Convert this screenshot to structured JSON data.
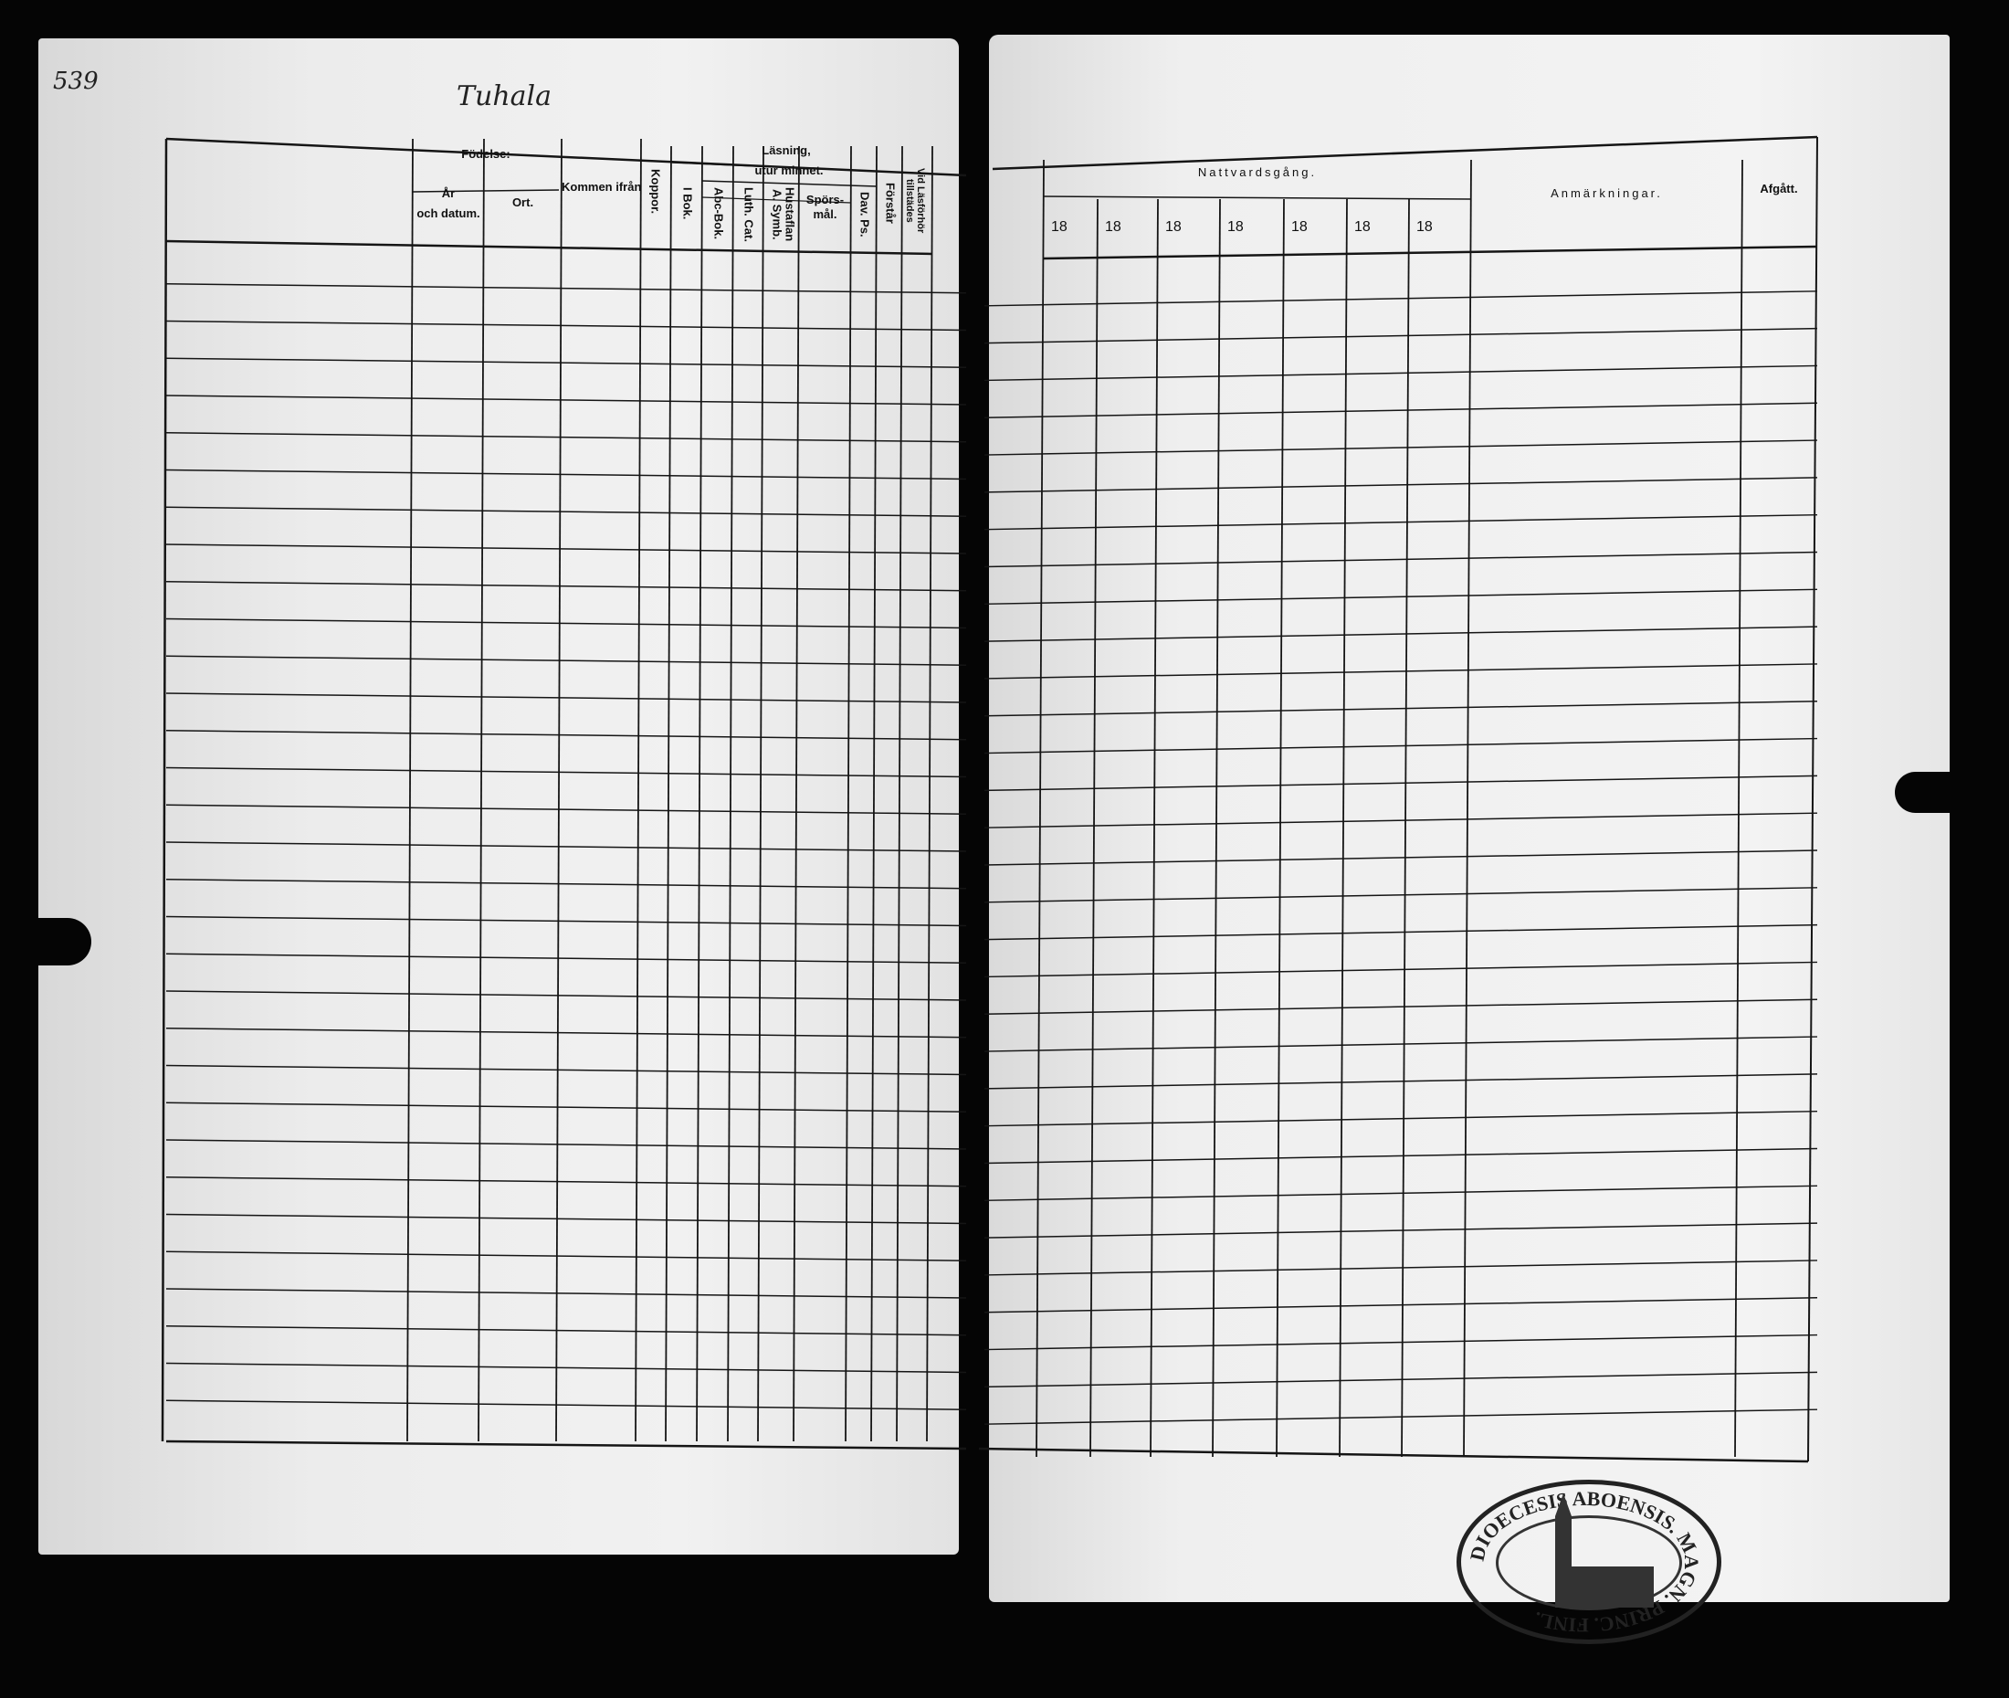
{
  "page_number": "539",
  "place_name": "Tuhala",
  "left_table": {
    "fodelse": "Födelse:",
    "ar_och_datum_1": "År",
    "ar_och_datum_2": "och datum.",
    "ort": "Ort.",
    "kommen_ifran": "Kommen ifrån",
    "koppor": "Koppor.",
    "lasning": "Läsning,",
    "utur_minnet": "utur minnet.",
    "i_bok": "I Bok.",
    "abc_bok": "Abc-Bok.",
    "luth_cat": "Luth. Cat.",
    "hustaflan": "Hustaflan A. Symb.",
    "sporsmal_1": "Spörs-",
    "sporsmal_2": "mål.",
    "dav_ps": "Dav. Ps.",
    "forstar": "Förstår",
    "vid_lasforhor": "Vid Läsförhör tillstädes"
  },
  "right_table": {
    "nattvardsgang": "Nattvardsgång.",
    "year_prefixes": [
      "18",
      "18",
      "18",
      "18",
      "18",
      "18",
      "18"
    ],
    "anmarkningar": "Anmärkningar.",
    "afgatt": "Afgått."
  },
  "stamp": {
    "text": "DIOECESIS ABOENSIS. MAGN. PRINC. FINL."
  },
  "colors": {
    "paper": "#efefef",
    "ink": "#111111",
    "background": "#050505"
  }
}
